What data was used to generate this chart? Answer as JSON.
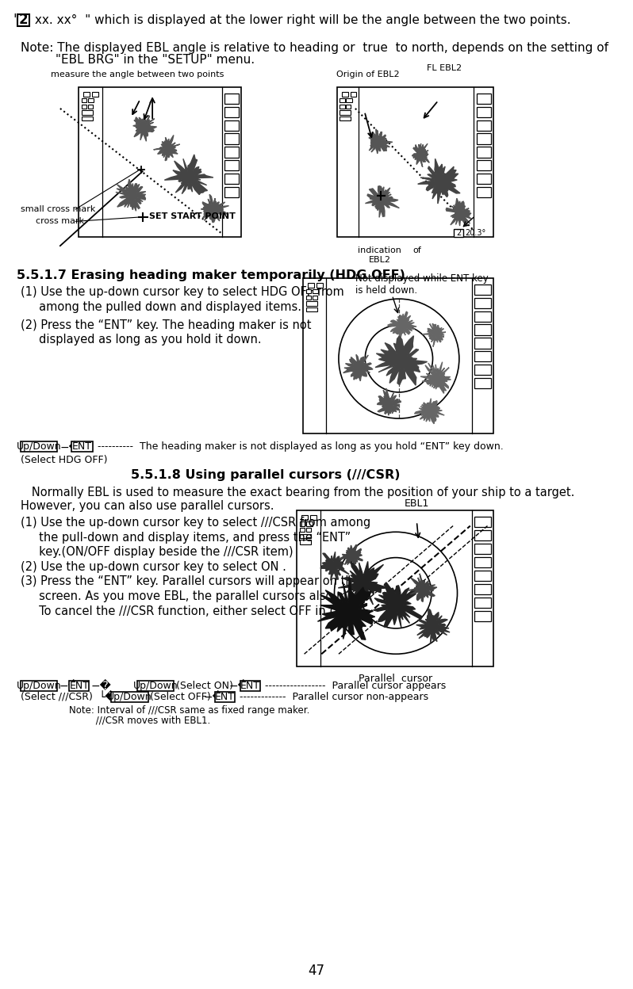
{
  "bg_color": "#ffffff",
  "text_color": "#000000",
  "page_number": "47",
  "title1": "5.5.1.7 Erasing heading maker temporarily (HDG OFF)",
  "title2": "5.5.1.8 Using parallel cursors (///CSR)",
  "header_text": "\" 2  xx. xx° \" which is displayed at the lower right will be the angle between the two points.",
  "note_line1": "Note: The displayed EBL angle is relative to heading or  true  to north, depends on the setting of",
  "note_line2": "         \"EBL BRG\" in the \"SETUP\" menu.",
  "diagram1_label": "measure the angle between two points",
  "diagram2_label_1": "Origin of EBL2",
  "diagram2_label_2": "FL EBL2",
  "diagram2_label_3": "indication",
  "diagram2_label_4": "of",
  "diagram2_label_5": "EBL2",
  "label_small_cross": "small cross mark",
  "label_cross": "cross mark",
  "label_set_start": "SET START POINT",
  "hdg_step1": "(1) Use the up-down cursor key to select HDG OFF from",
  "hdg_step1b": "     among the pulled down and displayed items.",
  "hdg_step2": "(2) Press the “ENT” key. The heading maker is not",
  "hdg_step2b": "     displayed as long as you hold it down.",
  "hdg_note_diagram": "Not displayed while ENT key\nis held down.",
  "hdg_select": "(Select HDG OFF)",
  "csr_intro1": "   Normally EBL is used to measure the exact bearing from the position of your ship to a target.",
  "csr_intro2": "However, you can also use parallel cursors.",
  "csr_step1": "(1) Use the up-down cursor key to select ///CSR from among",
  "csr_step1b": "     the pull-down and display items, and press the “ENT”",
  "csr_step1c": "     key.(ON/OFF display beside the ///CSR item)",
  "csr_step2": "(2) Use the up-down cursor key to select ON .",
  "csr_step3": "(3) Press the “ENT” key. Parallel cursors will appear on the",
  "csr_step3b": "     screen. As you move EBL, the parallel cursors also move.",
  "csr_step3c": "     To cancel the ///CSR function, either select OFF in (2).",
  "ebl1_label": "EBL1",
  "parallel_cursor_label": "Parallel  cursor",
  "flow2_note1": "Note: Interval of ///CSR same as fixed range maker.",
  "flow2_note2": "         ///CSR moves with EBL1."
}
